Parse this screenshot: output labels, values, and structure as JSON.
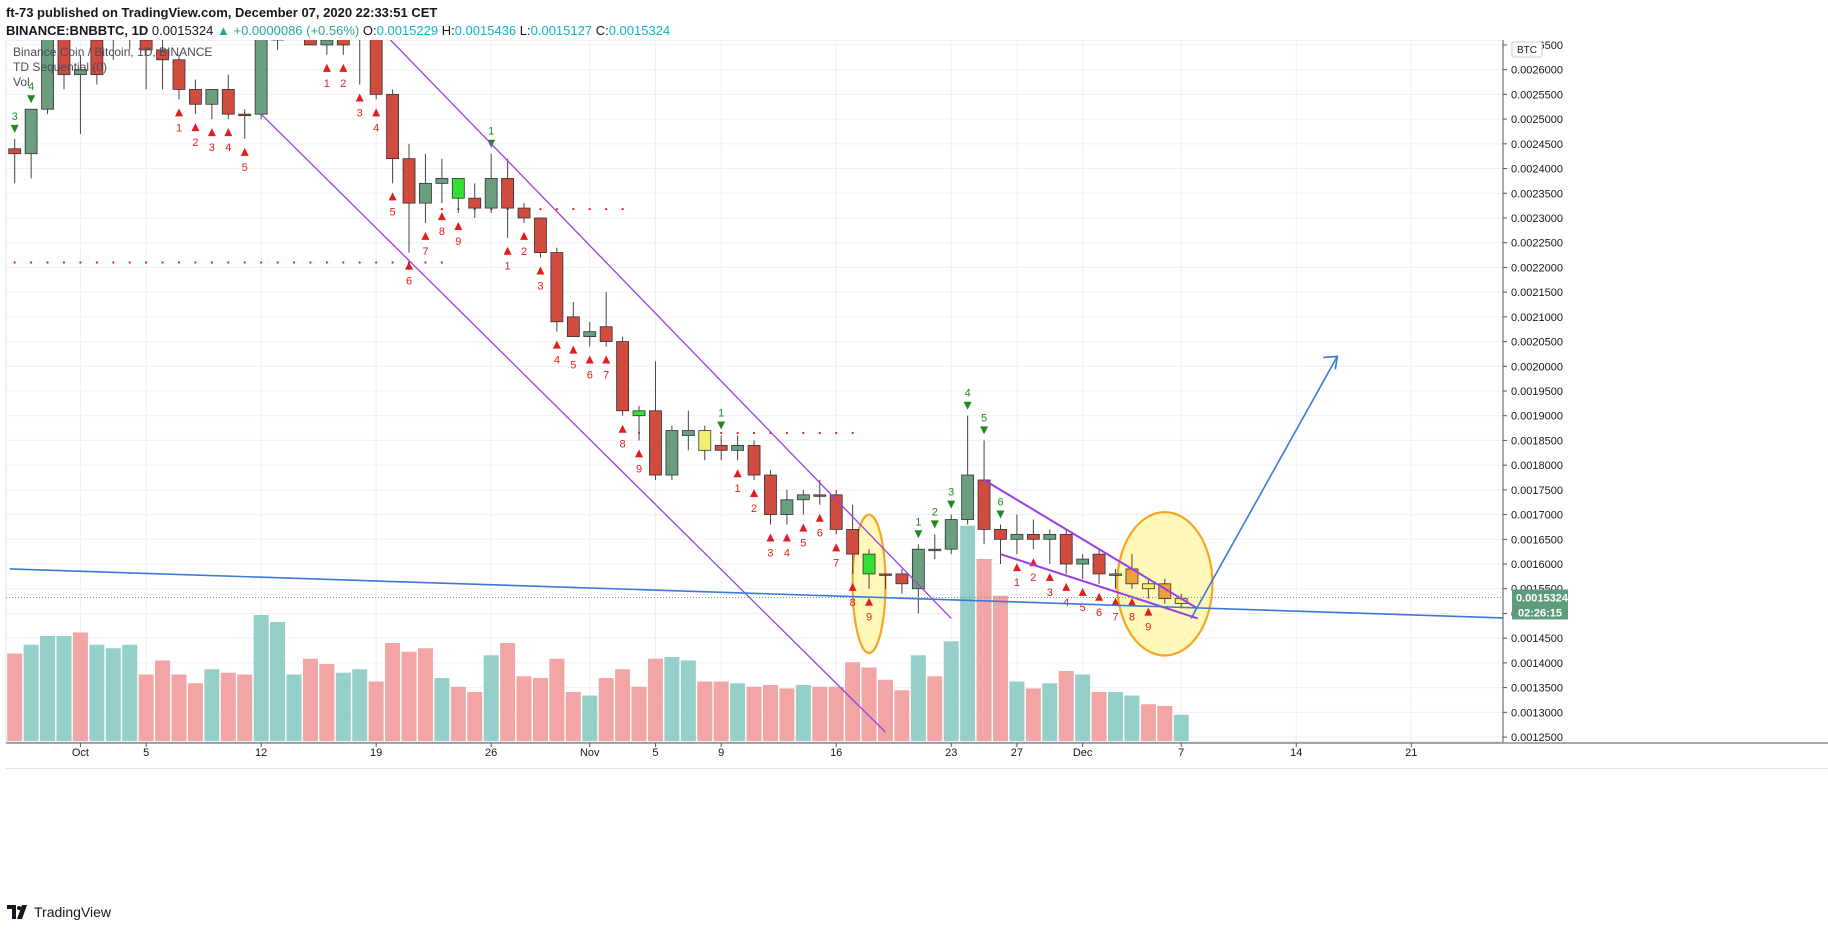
{
  "header": {
    "published": "ft-73 published on TradingView.com, December 07, 2020 22:33:51 CET",
    "symbol": "BINANCE:BNBBTC, 1D",
    "last": "0.0015324",
    "change": "+0.0000086 (+0.56%)",
    "o_label": "O:",
    "o_value": "0.0015229",
    "h_label": "H:",
    "h_value": "0.0015436",
    "l_label": "L:",
    "l_value": "0.0015127",
    "c_label": "C:",
    "c_value": "0.0015324"
  },
  "overlay": {
    "pane_title": "Binance Coin / Bitcoin, 1D, BINANCE",
    "indicator": "TD Sequential (0)",
    "volume_label": "Vol",
    "currency_badge": "BTC",
    "price_tag": "0.0015324",
    "countdown": "02:26:15"
  },
  "footer": {
    "brand": "TradingView",
    "logo_icon": "tradingview-logo-icon"
  },
  "colors": {
    "up": "#6a9e7f",
    "down": "#d14b3f",
    "bright_up": "#33e033",
    "doji_yellow": "#f0f06a",
    "vol_up": "#95cfca",
    "vol_down": "#f2a5a5",
    "channel": "#9a3ee8",
    "trend": "#3c78d8",
    "highlight_fill": "#fff6a0",
    "highlight_stroke": "#f5a623",
    "td_down": "#e51c1c",
    "td_up": "#1e8a1e"
  },
  "chart_data": {
    "type": "candlestick",
    "title": "Binance Coin / Bitcoin, 1D, BINANCE",
    "ylim": [
      0.00124,
      0.00266
    ],
    "y_ticks": [
      "0.0026500",
      "0.0026000",
      "0.0025500",
      "0.0025000",
      "0.0024500",
      "0.0024000",
      "0.0023500",
      "0.0023000",
      "0.0022500",
      "0.0022000",
      "0.0021500",
      "0.0021000",
      "0.0020500",
      "0.0020000",
      "0.0019500",
      "0.0019000",
      "0.0018500",
      "0.0018000",
      "0.0017500",
      "0.0017000",
      "0.0016500",
      "0.0016000",
      "0.0015500",
      "0.0015000",
      "0.0014500",
      "0.0014000",
      "0.0013500",
      "0.0013000",
      "0.0012500"
    ],
    "x_ticks": [
      {
        "label": "Oct",
        "i": 4
      },
      {
        "label": "5",
        "i": 8
      },
      {
        "label": "12",
        "i": 15
      },
      {
        "label": "19",
        "i": 22
      },
      {
        "label": "26",
        "i": 29
      },
      {
        "label": "Nov",
        "i": 35
      },
      {
        "label": "5",
        "i": 39
      },
      {
        "label": "9",
        "i": 43
      },
      {
        "label": "16",
        "i": 50
      },
      {
        "label": "23",
        "i": 57
      },
      {
        "label": "27",
        "i": 61
      },
      {
        "label": "Dec",
        "i": 65
      },
      {
        "label": "7",
        "i": 71
      },
      {
        "label": "14",
        "i": 78
      },
      {
        "label": "21",
        "i": 85
      }
    ],
    "candles": [
      [
        0.00244,
        0.00246,
        0.00237,
        0.00243,
        "down"
      ],
      [
        0.00243,
        0.00252,
        0.00238,
        0.00252,
        "up"
      ],
      [
        0.00252,
        0.0027,
        0.00251,
        0.0027,
        "up"
      ],
      [
        0.0027,
        0.00272,
        0.00256,
        0.00259,
        "down"
      ],
      [
        0.00259,
        0.00263,
        0.00247,
        0.0026,
        "up"
      ],
      [
        0.00266,
        0.00267,
        0.00257,
        0.00259,
        "down"
      ],
      [
        0.0027,
        0.00272,
        0.00262,
        0.00268,
        "down"
      ],
      [
        0.0027,
        0.00272,
        0.00264,
        0.00267,
        "down"
      ],
      [
        0.00266,
        0.00268,
        0.00256,
        0.00264,
        "down"
      ],
      [
        0.00264,
        0.00266,
        0.00256,
        0.00262,
        "down"
      ],
      [
        0.00262,
        0.00263,
        0.00254,
        0.00256,
        "down"
      ],
      [
        0.00256,
        0.00258,
        0.00251,
        0.00253,
        "down"
      ],
      [
        0.00253,
        0.00255,
        0.0025,
        0.00256,
        "up"
      ],
      [
        0.00256,
        0.00259,
        0.0025,
        0.00251,
        "down"
      ],
      [
        0.00251,
        0.00252,
        0.00246,
        0.00251,
        "down"
      ],
      [
        0.00251,
        0.0027,
        0.0025,
        0.00268,
        "up"
      ],
      [
        0.00268,
        0.0027,
        0.00264,
        0.00266,
        "up"
      ],
      [
        0.00268,
        0.0027,
        0.00266,
        0.00269,
        "down"
      ],
      [
        0.0027,
        0.00272,
        0.00265,
        0.00265,
        "down"
      ],
      [
        0.00265,
        0.0027,
        0.00263,
        0.00266,
        "up"
      ],
      [
        0.00268,
        0.0027,
        0.00263,
        0.00265,
        "down"
      ],
      [
        0.0027,
        0.00271,
        0.00257,
        0.00267,
        "down"
      ],
      [
        0.00267,
        0.00268,
        0.00254,
        0.00255,
        "down"
      ],
      [
        0.00255,
        0.00256,
        0.00237,
        0.00242,
        "down"
      ],
      [
        0.00242,
        0.00245,
        0.00223,
        0.00233,
        "down"
      ],
      [
        0.00233,
        0.00243,
        0.00229,
        0.00237,
        "up"
      ],
      [
        0.00237,
        0.00242,
        0.00233,
        0.00238,
        "up"
      ],
      [
        0.00234,
        0.00238,
        0.00231,
        0.00238,
        "bright"
      ],
      [
        0.00234,
        0.00237,
        0.0023,
        0.00232,
        "down"
      ],
      [
        0.00232,
        0.00243,
        0.00231,
        0.00238,
        "up"
      ],
      [
        0.00238,
        0.00242,
        0.00226,
        0.00232,
        "down"
      ],
      [
        0.00232,
        0.00233,
        0.00229,
        0.0023,
        "down"
      ],
      [
        0.0023,
        0.0023,
        0.00222,
        0.00223,
        "down"
      ],
      [
        0.00223,
        0.00224,
        0.00207,
        0.00209,
        "down"
      ],
      [
        0.0021,
        0.00213,
        0.00206,
        0.00206,
        "down"
      ],
      [
        0.00206,
        0.00209,
        0.00204,
        0.00207,
        "up"
      ],
      [
        0.00208,
        0.00215,
        0.00204,
        0.00205,
        "down"
      ],
      [
        0.00205,
        0.00206,
        0.0019,
        0.00191,
        "down"
      ],
      [
        0.0019,
        0.00192,
        0.00185,
        0.00191,
        "bright"
      ],
      [
        0.00191,
        0.00201,
        0.00177,
        0.00178,
        "down"
      ],
      [
        0.00178,
        0.00188,
        0.00177,
        0.00187,
        "up"
      ],
      [
        0.00186,
        0.00191,
        0.00183,
        0.00187,
        "up"
      ],
      [
        0.00187,
        0.00188,
        0.00181,
        0.00183,
        "yellow"
      ],
      [
        0.00184,
        0.00186,
        0.00181,
        0.00183,
        "down"
      ],
      [
        0.00183,
        0.00186,
        0.00181,
        0.00184,
        "up"
      ],
      [
        0.00184,
        0.00185,
        0.00177,
        0.00178,
        "down"
      ],
      [
        0.00178,
        0.00179,
        0.00168,
        0.0017,
        "down"
      ],
      [
        0.0017,
        0.00175,
        0.00168,
        0.00173,
        "up"
      ],
      [
        0.00173,
        0.00175,
        0.0017,
        0.00174,
        "up"
      ],
      [
        0.00174,
        0.00177,
        0.00172,
        0.00174,
        "down"
      ],
      [
        0.00174,
        0.00175,
        0.00166,
        0.00167,
        "down"
      ],
      [
        0.00167,
        0.00172,
        0.00158,
        0.00162,
        "down"
      ],
      [
        0.00158,
        0.00163,
        0.00155,
        0.00162,
        "bright"
      ],
      [
        0.00158,
        0.00158,
        0.00155,
        0.00158,
        "down"
      ],
      [
        0.00158,
        0.00159,
        0.00154,
        0.00156,
        "down"
      ],
      [
        0.00155,
        0.00164,
        0.0015,
        0.00163,
        "up"
      ],
      [
        0.00163,
        0.00166,
        0.00161,
        0.00163,
        "up"
      ],
      [
        0.00163,
        0.0017,
        0.00162,
        0.00169,
        "up"
      ],
      [
        0.00169,
        0.0019,
        0.00168,
        0.00178,
        "up"
      ],
      [
        0.00177,
        0.00185,
        0.00164,
        0.00167,
        "down"
      ],
      [
        0.00167,
        0.00168,
        0.0016,
        0.00165,
        "down"
      ],
      [
        0.00165,
        0.0017,
        0.00162,
        0.00166,
        "up"
      ],
      [
        0.00166,
        0.00169,
        0.00163,
        0.00165,
        "down"
      ],
      [
        0.00165,
        0.00167,
        0.0016,
        0.00166,
        "up"
      ],
      [
        0.00166,
        0.00167,
        0.00158,
        0.0016,
        "down"
      ],
      [
        0.0016,
        0.00162,
        0.00157,
        0.00161,
        "up"
      ],
      [
        0.00162,
        0.00163,
        0.00156,
        0.00158,
        "down"
      ],
      [
        0.00158,
        0.00159,
        0.00155,
        0.00158,
        "up"
      ],
      [
        0.00159,
        0.00162,
        0.00155,
        0.00156,
        "orange"
      ],
      [
        0.00155,
        0.00157,
        0.00153,
        0.00156,
        "yellow"
      ],
      [
        0.00156,
        0.00157,
        0.00152,
        0.00153,
        "orange"
      ],
      [
        0.00152,
        0.00154,
        0.00151,
        0.00153,
        "yellow"
      ]
    ],
    "volume_max": 100,
    "volume": [
      [
        50,
        "down"
      ],
      [
        55,
        "up"
      ],
      [
        60,
        "up"
      ],
      [
        60,
        "up"
      ],
      [
        62,
        "down"
      ],
      [
        55,
        "up"
      ],
      [
        53,
        "up"
      ],
      [
        55,
        "up"
      ],
      [
        38,
        "down"
      ],
      [
        46,
        "down"
      ],
      [
        38,
        "down"
      ],
      [
        33,
        "down"
      ],
      [
        41,
        "up"
      ],
      [
        39,
        "down"
      ],
      [
        38,
        "down"
      ],
      [
        72,
        "up"
      ],
      [
        68,
        "up"
      ],
      [
        38,
        "up"
      ],
      [
        47,
        "down"
      ],
      [
        44,
        "down"
      ],
      [
        39,
        "up"
      ],
      [
        41,
        "up"
      ],
      [
        34,
        "down"
      ],
      [
        56,
        "down"
      ],
      [
        51,
        "down"
      ],
      [
        53,
        "down"
      ],
      [
        36,
        "up"
      ],
      [
        31,
        "down"
      ],
      [
        28,
        "down"
      ],
      [
        49,
        "up"
      ],
      [
        56,
        "down"
      ],
      [
        37,
        "down"
      ],
      [
        36,
        "down"
      ],
      [
        47,
        "down"
      ],
      [
        28,
        "down"
      ],
      [
        26,
        "up"
      ],
      [
        36,
        "down"
      ],
      [
        41,
        "down"
      ],
      [
        31,
        "down"
      ],
      [
        47,
        "down"
      ],
      [
        48,
        "up"
      ],
      [
        46,
        "up"
      ],
      [
        34,
        "down"
      ],
      [
        34,
        "down"
      ],
      [
        33,
        "up"
      ],
      [
        31,
        "down"
      ],
      [
        32,
        "down"
      ],
      [
        30,
        "down"
      ],
      [
        32,
        "up"
      ],
      [
        31,
        "down"
      ],
      [
        31,
        "down"
      ],
      [
        45,
        "down"
      ],
      [
        42,
        "down"
      ],
      [
        35,
        "down"
      ],
      [
        29,
        "down"
      ],
      [
        49,
        "up"
      ],
      [
        37,
        "down"
      ],
      [
        57,
        "up"
      ],
      [
        123,
        "up"
      ],
      [
        104,
        "down"
      ],
      [
        83,
        "down"
      ],
      [
        34,
        "up"
      ],
      [
        30,
        "down"
      ],
      [
        33,
        "up"
      ],
      [
        40,
        "down"
      ],
      [
        38,
        "up"
      ],
      [
        28,
        "down"
      ],
      [
        28,
        "up"
      ],
      [
        26,
        "up"
      ],
      [
        21,
        "down"
      ],
      [
        20,
        "down"
      ],
      [
        15,
        "up"
      ]
    ],
    "td_labels": [
      {
        "i": 0,
        "t": "3",
        "pos": "above"
      },
      {
        "i": 1,
        "t": "4",
        "pos": "above"
      },
      {
        "i": 10,
        "t": "1",
        "pos": "below"
      },
      {
        "i": 11,
        "t": "2",
        "pos": "below"
      },
      {
        "i": 12,
        "t": "3",
        "pos": "below"
      },
      {
        "i": 13,
        "t": "4",
        "pos": "below"
      },
      {
        "i": 14,
        "t": "5",
        "pos": "below"
      },
      {
        "i": 19,
        "t": "1",
        "pos": "below"
      },
      {
        "i": 20,
        "t": "2",
        "pos": "below"
      },
      {
        "i": 21,
        "t": "3",
        "pos": "below"
      },
      {
        "i": 22,
        "t": "4",
        "pos": "below"
      },
      {
        "i": 23,
        "t": "5",
        "pos": "below"
      },
      {
        "i": 24,
        "t": "6",
        "pos": "below"
      },
      {
        "i": 25,
        "t": "7",
        "pos": "below"
      },
      {
        "i": 26,
        "t": "8",
        "pos": "below"
      },
      {
        "i": 27,
        "t": "9",
        "pos": "below"
      },
      {
        "i": 29,
        "t": "1",
        "pos": "above"
      },
      {
        "i": 30,
        "t": "1",
        "pos": "below"
      },
      {
        "i": 31,
        "t": "2",
        "pos": "below"
      },
      {
        "i": 32,
        "t": "3",
        "pos": "below"
      },
      {
        "i": 33,
        "t": "4",
        "pos": "below"
      },
      {
        "i": 34,
        "t": "5",
        "pos": "below"
      },
      {
        "i": 35,
        "t": "6",
        "pos": "below"
      },
      {
        "i": 36,
        "t": "7",
        "pos": "below"
      },
      {
        "i": 37,
        "t": "8",
        "pos": "below"
      },
      {
        "i": 38,
        "t": "9",
        "pos": "below"
      },
      {
        "i": 43,
        "t": "1",
        "pos": "above"
      },
      {
        "i": 44,
        "t": "1",
        "pos": "below"
      },
      {
        "i": 45,
        "t": "2",
        "pos": "below"
      },
      {
        "i": 46,
        "t": "3",
        "pos": "below"
      },
      {
        "i": 47,
        "t": "4",
        "pos": "below"
      },
      {
        "i": 48,
        "t": "5",
        "pos": "below"
      },
      {
        "i": 49,
        "t": "6",
        "pos": "below"
      },
      {
        "i": 50,
        "t": "7",
        "pos": "below"
      },
      {
        "i": 51,
        "t": "8",
        "pos": "below"
      },
      {
        "i": 52,
        "t": "9",
        "pos": "below"
      },
      {
        "i": 55,
        "t": "1",
        "pos": "above"
      },
      {
        "i": 56,
        "t": "2",
        "pos": "above"
      },
      {
        "i": 57,
        "t": "3",
        "pos": "above"
      },
      {
        "i": 58,
        "t": "4",
        "pos": "above"
      },
      {
        "i": 59,
        "t": "5",
        "pos": "above"
      },
      {
        "i": 60,
        "t": "6",
        "pos": "above"
      },
      {
        "i": 61,
        "t": "1",
        "pos": "below"
      },
      {
        "i": 62,
        "t": "2",
        "pos": "below"
      },
      {
        "i": 63,
        "t": "3",
        "pos": "below"
      },
      {
        "i": 64,
        "t": "4",
        "pos": "below"
      },
      {
        "i": 65,
        "t": "5",
        "pos": "below"
      },
      {
        "i": 66,
        "t": "6",
        "pos": "below"
      },
      {
        "i": 67,
        "t": "7",
        "pos": "below"
      },
      {
        "i": 68,
        "t": "8",
        "pos": "below"
      },
      {
        "i": 69,
        "t": "9",
        "pos": "below"
      }
    ],
    "resistance_levels": [
      {
        "price": 0.00221,
        "from": 0,
        "to": 26
      },
      {
        "price": 0.002318,
        "from": 26,
        "to": 37
      },
      {
        "price": 0.001865,
        "from": 38,
        "to": 51
      }
    ],
    "channel_lines": [
      {
        "from": [
          15,
          0.00251
        ],
        "to": [
          53,
          0.00126
        ]
      },
      {
        "from": [
          22,
          0.00269
        ],
        "to": [
          57,
          0.00149
        ]
      }
    ],
    "wedge_lines": [
      {
        "from": [
          59,
          0.00177
        ],
        "to": [
          72,
          0.00151
        ]
      },
      {
        "from": [
          60,
          0.00162
        ],
        "to": [
          72,
          0.00149
        ]
      }
    ],
    "trend_lines": [
      {
        "from": [
          -0.3,
          0.00159
        ],
        "to": [
          91.5,
          0.00149
        ]
      },
      {
        "from": [
          71.6,
          0.00149
        ],
        "to": [
          80.5,
          0.00202
        ]
      }
    ],
    "highlights": [
      {
        "i": 52,
        "price": 0.00156,
        "rx": 1.0,
        "ry": 0.00014
      },
      {
        "i": 70,
        "price": 0.00156,
        "rx": 2.9,
        "ry": 0.000145
      }
    ],
    "current_price": 0.0015324
  }
}
